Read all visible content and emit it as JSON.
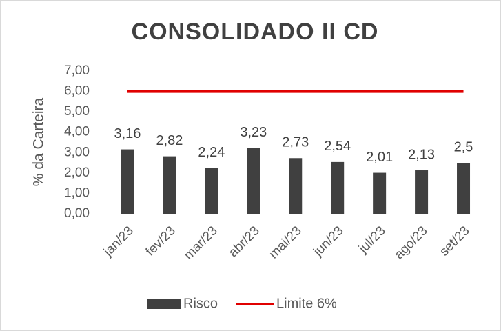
{
  "chart_data": {
    "type": "bar",
    "title": "CONSOLIDADO II CD",
    "y_label": "% da Carteira",
    "categories": [
      "jan/23",
      "fev/23",
      "mar/23",
      "abr/23",
      "mai/23",
      "jun/23",
      "jul/23",
      "ago/23",
      "set/23"
    ],
    "series": [
      {
        "name": "Risco",
        "type": "bar",
        "color": "#404040",
        "values": [
          3.16,
          2.82,
          2.24,
          3.23,
          2.73,
          2.54,
          2.01,
          2.13,
          2.5
        ],
        "value_labels": [
          "3,16",
          "2,82",
          "2,24",
          "3,23",
          "2,73",
          "2,54",
          "2,01",
          "2,13",
          "2,5"
        ]
      },
      {
        "name": "Limite 6%",
        "type": "line",
        "color": "#e00000",
        "values": [
          6,
          6,
          6,
          6,
          6,
          6,
          6,
          6,
          6
        ]
      }
    ],
    "ylim": [
      0,
      7
    ],
    "yticks": [
      {
        "value": 0,
        "label": "0,00"
      },
      {
        "value": 1,
        "label": "1,00"
      },
      {
        "value": 2,
        "label": "2,00"
      },
      {
        "value": 3,
        "label": "3,00"
      },
      {
        "value": 4,
        "label": "4,00"
      },
      {
        "value": 5,
        "label": "5,00"
      },
      {
        "value": 6,
        "label": "6,00"
      },
      {
        "value": 7,
        "label": "7,00"
      }
    ],
    "grid": false,
    "legend": "bottom"
  }
}
